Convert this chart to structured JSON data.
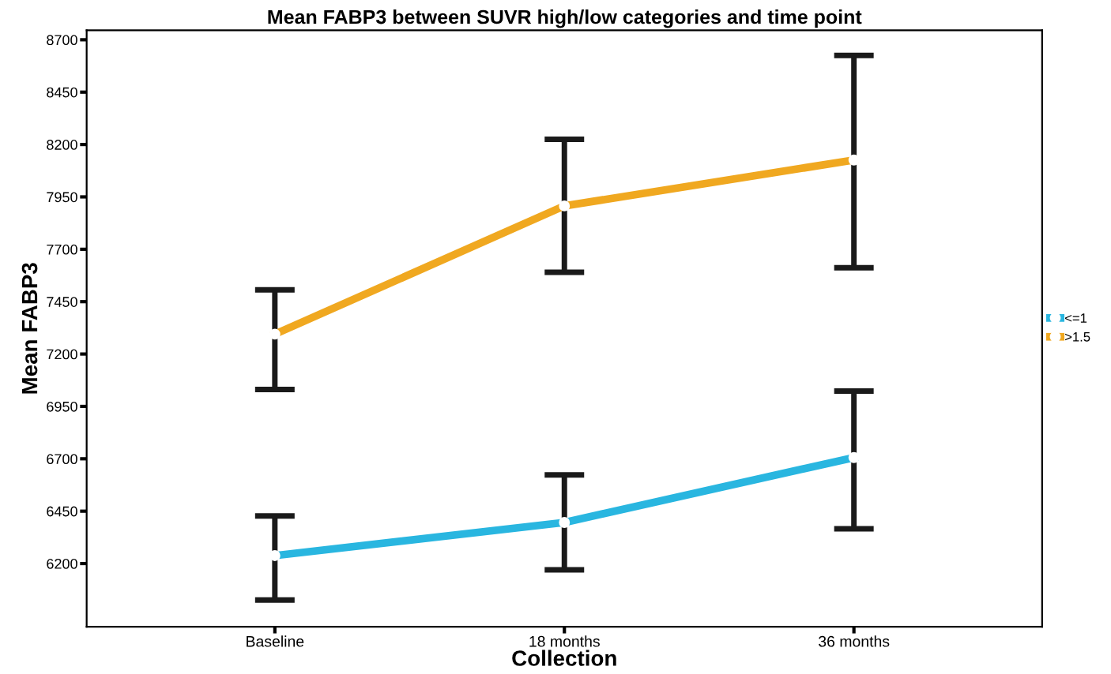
{
  "chart_data": {
    "type": "line",
    "title": "Mean FABP3 between SUVR high/low categories and time point",
    "xlabel": "Collection",
    "ylabel": "Mean FABP3",
    "categories": [
      "Baseline",
      "18 months",
      "36 months"
    ],
    "series": [
      {
        "name": "<=1",
        "color": "#29b6e0",
        "values": [
          6238,
          6396,
          6706
        ],
        "errors": [
          [
            6026,
            6427
          ],
          [
            6170,
            6623
          ],
          [
            6366,
            7023
          ]
        ]
      },
      {
        "name": ">1.5",
        "color": "#f0a820",
        "values": [
          7295,
          7907,
          8126
        ],
        "errors": [
          [
            7031,
            7506
          ],
          [
            7590,
            8225
          ],
          [
            7612,
            8625
          ]
        ]
      }
    ],
    "ylim": [
      5898,
      8745
    ],
    "yticks": [
      6200,
      6450,
      6700,
      6950,
      7200,
      7450,
      7700,
      7950,
      8200,
      8450,
      8700
    ],
    "grid": false,
    "legend": "right",
    "marker": "circle",
    "line_style": "solid"
  }
}
